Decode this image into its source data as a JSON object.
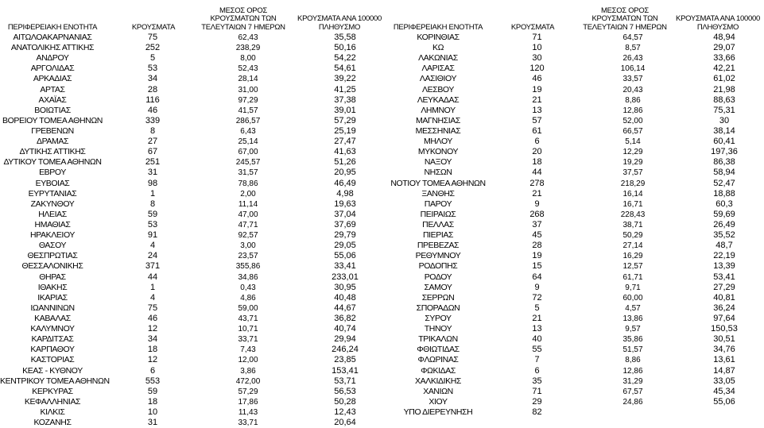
{
  "headers": {
    "region": "ΠΕΡΙΦΕΡΕΙΑΚΗ ΕΝΟΤΗΤΑ",
    "cases": "ΚΡΟΥΣΜΑΤΑ",
    "avg": "ΜΕΣΟΣ ΟΡΟΣ ΚΡΟΥΣΜΑΤΩΝ ΤΩΝ ΤΕΛΕΥΤΑΙΩΝ 7 ΗΜΕΡΩΝ",
    "per100k": "ΚΡΟΥΣΜΑΤΑ ΑΝΑ 100000 ΠΛΗΘΥΣΜΟ"
  },
  "left_rows": [
    [
      "ΑΙΤΩΛΟΑΚΑΡΝΑΝΙΑΣ",
      "75",
      "62,43",
      "35,58"
    ],
    [
      "ΑΝΑΤΟΛΙΚΗΣ ΑΤΤΙΚΗΣ",
      "252",
      "238,29",
      "50,16"
    ],
    [
      "ΑΝΔΡΟΥ",
      "5",
      "8,00",
      "54,22"
    ],
    [
      "ΑΡΓΟΛΙΔΑΣ",
      "53",
      "52,43",
      "54,61"
    ],
    [
      "ΑΡΚΑΔΙΑΣ",
      "34",
      "28,14",
      "39,22"
    ],
    [
      "ΑΡΤΑΣ",
      "28",
      "31,00",
      "41,25"
    ],
    [
      "ΑΧΑΪΑΣ",
      "116",
      "97,29",
      "37,38"
    ],
    [
      "ΒΟΙΩΤΙΑΣ",
      "46",
      "41,57",
      "39,01"
    ],
    [
      "ΒΟΡΕΙΟΥ ΤΟΜΕΑ ΑΘΗΝΩΝ",
      "339",
      "286,57",
      "57,29"
    ],
    [
      "ΓΡΕΒΕΝΩΝ",
      "8",
      "6,43",
      "25,19"
    ],
    [
      "ΔΡΑΜΑΣ",
      "27",
      "25,14",
      "27,47"
    ],
    [
      "ΔΥΤΙΚΗΣ ΑΤΤΙΚΗΣ",
      "67",
      "67,00",
      "41,63"
    ],
    [
      "ΔΥΤΙΚΟΥ ΤΟΜΕΑ ΑΘΗΝΩΝ",
      "251",
      "245,57",
      "51,26"
    ],
    [
      "ΕΒΡΟΥ",
      "31",
      "31,57",
      "20,95"
    ],
    [
      "ΕΥΒΟΙΑΣ",
      "98",
      "78,86",
      "46,49"
    ],
    [
      "ΕΥΡΥΤΑΝΙΑΣ",
      "1",
      "2,00",
      "4,98"
    ],
    [
      "ΖΑΚΥΝΘΟΥ",
      "8",
      "11,14",
      "19,63"
    ],
    [
      "ΗΛΕΙΑΣ",
      "59",
      "47,00",
      "37,04"
    ],
    [
      "ΗΜΑΘΙΑΣ",
      "53",
      "47,71",
      "37,69"
    ],
    [
      "ΗΡΑΚΛΕΙΟΥ",
      "91",
      "92,57",
      "29,79"
    ],
    [
      "ΘΑΣΟΥ",
      "4",
      "3,00",
      "29,05"
    ],
    [
      "ΘΕΣΠΡΩΤΙΑΣ",
      "24",
      "23,57",
      "55,06"
    ],
    [
      "ΘΕΣΣΑΛΟΝΙΚΗΣ",
      "371",
      "355,86",
      "33,41"
    ],
    [
      "ΘΗΡΑΣ",
      "44",
      "34,86",
      "233,01"
    ],
    [
      "ΙΘΑΚΗΣ",
      "1",
      "0,43",
      "30,95"
    ],
    [
      "ΙΚΑΡΙΑΣ",
      "4",
      "4,86",
      "40,48"
    ],
    [
      "ΙΩΑΝΝΙΝΩΝ",
      "75",
      "59,00",
      "44,67"
    ],
    [
      "ΚΑΒΑΛΑΣ",
      "46",
      "43,71",
      "36,82"
    ],
    [
      "ΚΑΛΥΜΝΟΥ",
      "12",
      "10,71",
      "40,74"
    ],
    [
      "ΚΑΡΔΙΤΣΑΣ",
      "34",
      "33,71",
      "29,94"
    ],
    [
      "ΚΑΡΠΑΘΟΥ",
      "18",
      "7,43",
      "246,24"
    ],
    [
      "ΚΑΣΤΟΡΙΑΣ",
      "12",
      "12,00",
      "23,85"
    ],
    [
      "ΚΕΑΣ - ΚΥΘΝΟΥ",
      "6",
      "3,86",
      "153,41"
    ],
    [
      "ΚΕΝΤΡΙΚΟΥ ΤΟΜΕΑ ΑΘΗΝΩΝ",
      "553",
      "472,00",
      "53,71"
    ],
    [
      "ΚΕΡΚΥΡΑΣ",
      "59",
      "57,29",
      "56,53"
    ],
    [
      "ΚΕΦΑΛΛΗΝΙΑΣ",
      "18",
      "17,86",
      "50,28"
    ],
    [
      "ΚΙΛΚΙΣ",
      "10",
      "11,43",
      "12,43"
    ],
    [
      "ΚΟΖΑΝΗΣ",
      "31",
      "33,71",
      "20,64"
    ]
  ],
  "right_rows": [
    [
      "ΚΟΡΙΝΘΙΑΣ",
      "71",
      "64,57",
      "48,94"
    ],
    [
      "ΚΩ",
      "10",
      "8,57",
      "29,07"
    ],
    [
      "ΛΑΚΩΝΙΑΣ",
      "30",
      "26,43",
      "33,66"
    ],
    [
      "ΛΑΡΙΣΑΣ",
      "120",
      "106,14",
      "42,21"
    ],
    [
      "ΛΑΣΙΘΙΟΥ",
      "46",
      "33,57",
      "61,02"
    ],
    [
      "ΛΕΣΒΟΥ",
      "19",
      "20,43",
      "21,98"
    ],
    [
      "ΛΕΥΚΑΔΑΣ",
      "21",
      "8,86",
      "88,63"
    ],
    [
      "ΛΗΜΝΟΥ",
      "13",
      "12,86",
      "75,31"
    ],
    [
      "ΜΑΓΝΗΣΙΑΣ",
      "57",
      "52,00",
      "30"
    ],
    [
      "ΜΕΣΣΗΝΙΑΣ",
      "61",
      "66,57",
      "38,14"
    ],
    [
      "ΜΗΛΟΥ",
      "6",
      "5,14",
      "60,41"
    ],
    [
      "ΜΥΚΟΝΟΥ",
      "20",
      "12,29",
      "197,36"
    ],
    [
      "ΝΑΞΟΥ",
      "18",
      "19,29",
      "86,38"
    ],
    [
      "ΝΗΣΩΝ",
      "44",
      "37,57",
      "58,94"
    ],
    [
      "ΝΟΤΙΟΥ ΤΟΜΕΑ ΑΘΗΝΩΝ",
      "278",
      "218,29",
      "52,47"
    ],
    [
      "ΞΑΝΘΗΣ",
      "21",
      "16,14",
      "18,88"
    ],
    [
      "ΠΑΡΟΥ",
      "9",
      "16,71",
      "60,3"
    ],
    [
      "ΠΕΙΡΑΙΩΣ",
      "268",
      "228,43",
      "59,69"
    ],
    [
      "ΠΕΛΛΑΣ",
      "37",
      "38,71",
      "26,49"
    ],
    [
      "ΠΙΕΡΙΑΣ",
      "45",
      "50,29",
      "35,52"
    ],
    [
      "ΠΡΕΒΕΖΑΣ",
      "28",
      "27,14",
      "48,7"
    ],
    [
      "ΡΕΘΥΜΝΟΥ",
      "19",
      "16,29",
      "22,19"
    ],
    [
      "ΡΟΔΟΠΗΣ",
      "15",
      "12,57",
      "13,39"
    ],
    [
      "ΡΟΔΟΥ",
      "64",
      "61,71",
      "53,41"
    ],
    [
      "ΣΑΜΟΥ",
      "9",
      "9,71",
      "27,29"
    ],
    [
      "ΣΕΡΡΩΝ",
      "72",
      "60,00",
      "40,81"
    ],
    [
      "ΣΠΟΡΑΔΩΝ",
      "5",
      "4,57",
      "36,24"
    ],
    [
      "ΣΥΡΟΥ",
      "21",
      "13,86",
      "97,64"
    ],
    [
      "ΤΗΝΟΥ",
      "13",
      "9,57",
      "150,53"
    ],
    [
      "ΤΡΙΚΑΛΩΝ",
      "40",
      "35,86",
      "30,51"
    ],
    [
      "ΦΘΙΩΤΙΔΑΣ",
      "55",
      "51,57",
      "34,76"
    ],
    [
      "ΦΛΩΡΙΝΑΣ",
      "7",
      "8,86",
      "13,61"
    ],
    [
      "ΦΩΚΙΔΑΣ",
      "6",
      "12,86",
      "14,87"
    ],
    [
      "ΧΑΛΚΙΔΙΚΗΣ",
      "35",
      "31,29",
      "33,05"
    ],
    [
      "ΧΑΝΙΩΝ",
      "71",
      "67,57",
      "45,34"
    ],
    [
      "ΧΙΟΥ",
      "29",
      "24,86",
      "55,06"
    ],
    [
      "ΥΠΟ ΔΙΕΡΕΥΝΗΣΗ",
      "82",
      "",
      ""
    ]
  ]
}
